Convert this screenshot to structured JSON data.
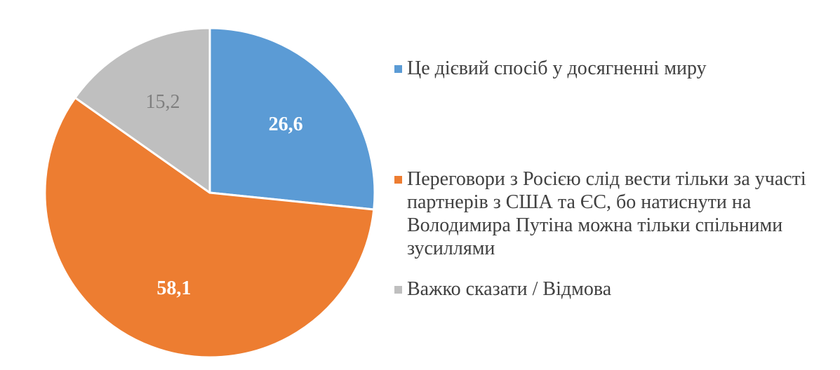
{
  "chart_data": {
    "type": "pie",
    "title": "",
    "slices": [
      {
        "label": "Це дієвий спосіб у досягненні миру",
        "value": 26.6,
        "display": "26,6",
        "color": "#5B9BD5",
        "label_color": "#FFFFFF",
        "label_bold": true
      },
      {
        "label": "Переговори з Росією слід вести тільки за участі партнерів з США та ЄС, бо натиснути на Володимира Путіна можна тільки спільними зусиллями",
        "value": 58.1,
        "display": "58,1",
        "color": "#ED7D31",
        "label_color": "#FFFFFF",
        "label_bold": true
      },
      {
        "label": "Важко сказати / Відмова",
        "value": 15.2,
        "display": "15,2",
        "color": "#BFBFBF",
        "label_color": "#7F7F7F",
        "label_bold": false
      }
    ],
    "start_angle": "12 o'clock",
    "direction": "clockwise",
    "legend_position": "right"
  }
}
